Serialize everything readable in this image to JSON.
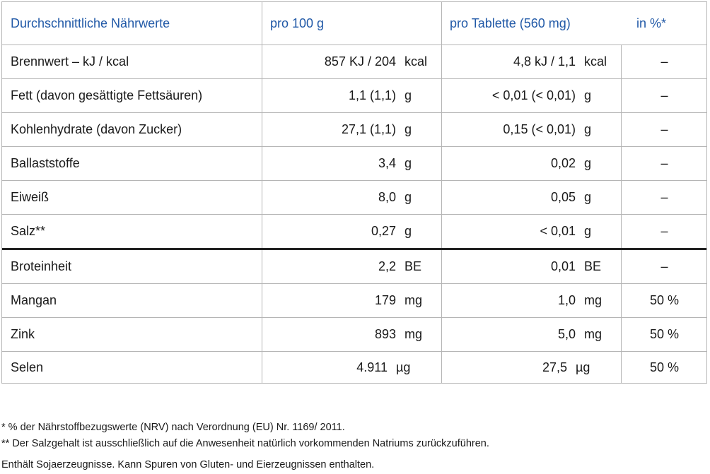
{
  "header": {
    "col_name": "Durchschnittliche Nährwerte",
    "col_100g": "pro 100 g",
    "col_tablet": "pro Tablette (560 mg)",
    "col_pct": "in %*"
  },
  "rows": [
    {
      "name": "Brennwert – kJ / kcal",
      "v1": "857 KJ / 204",
      "u1": "kcal",
      "v2": "4,8 kJ / 1,1",
      "u2": "kcal",
      "pct": "–"
    },
    {
      "name": "Fett (davon gesättigte Fettsäuren)",
      "v1": "1,1 (1,1)",
      "u1": "g",
      "v2": "< 0,01 (< 0,01)",
      "u2": "g",
      "pct": "–"
    },
    {
      "name": "Kohlenhydrate (davon Zucker)",
      "v1": "27,1 (1,1)",
      "u1": "g",
      "v2": "0,15 (< 0,01)",
      "u2": "g",
      "pct": "–"
    },
    {
      "name": "Ballaststoffe",
      "v1": "3,4",
      "u1": "g",
      "v2": "0,02",
      "u2": "g",
      "pct": "–"
    },
    {
      "name": "Eiweiß",
      "v1": "8,0",
      "u1": "g",
      "v2": "0,05",
      "u2": "g",
      "pct": "–"
    },
    {
      "name": "Salz**",
      "v1": "0,27",
      "u1": "g",
      "v2": "< 0,01",
      "u2": "g",
      "pct": "–"
    },
    {
      "name": "Broteinheit",
      "v1": "2,2",
      "u1": "BE",
      "v2": "0,01",
      "u2": "BE",
      "pct": "–"
    },
    {
      "name": "Mangan",
      "v1": "179",
      "u1": "mg",
      "v2": "1,0",
      "u2": "mg",
      "pct": "50 %"
    },
    {
      "name": "Zink",
      "v1": "893",
      "u1": "mg",
      "v2": "5,0",
      "u2": "mg",
      "pct": "50 %"
    },
    {
      "name": "Selen",
      "v1": "4.911",
      "u1": "µg",
      "v2": "27,5",
      "u2": "µg",
      "pct": "50 %"
    }
  ],
  "footnotes": {
    "note1": "*  % der Nährstoffbezugswerte (NRV) nach Verordnung (EU) Nr. 1169/ 2011.",
    "note2": "** Der Salzgehalt ist ausschließlich auf die Anwesenheit natürlich vorkommenden Natriums zurückzuführen.",
    "note3": "Enthält Sojaerzeugnisse. Kann Spuren von Gluten- und Eierzeugnissen enthalten."
  },
  "colors": {
    "header_text": "#2159a7",
    "border": "#b5b5b5",
    "separator": "#222222"
  }
}
